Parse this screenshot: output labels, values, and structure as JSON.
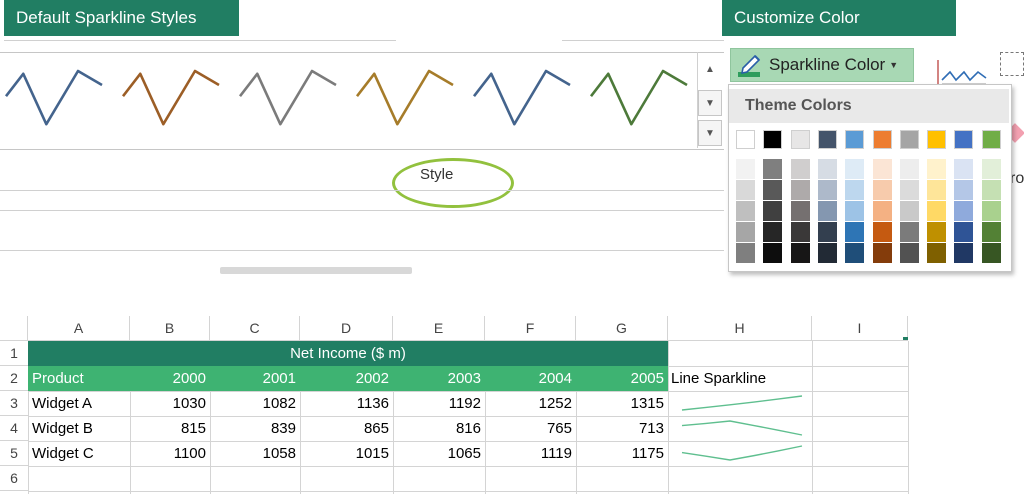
{
  "labels": {
    "default_styles": "Default Sparkline Styles",
    "customize_color": "Customize Color"
  },
  "ribbon": {
    "style_label": "Style",
    "sparkline_color_label": "Sparkline Color",
    "partial_text": "ro",
    "styles": [
      {
        "color": "#44648d"
      },
      {
        "color": "#9c5e26"
      },
      {
        "color": "#7b7b7b"
      },
      {
        "color": "#a67c2a"
      },
      {
        "color": "#44648d"
      },
      {
        "color": "#4d7a3a"
      }
    ],
    "highlight_color": "#92c13e"
  },
  "palette": {
    "title": "Theme Colors",
    "theme_colors": [
      "#ffffff",
      "#000000",
      "#e7e6e6",
      "#44546a",
      "#5b9bd5",
      "#ed7d31",
      "#a5a5a5",
      "#ffc000",
      "#4472c4",
      "#70ad47"
    ],
    "shades": [
      [
        "#f2f2f2",
        "#d9d9d9",
        "#bfbfbf",
        "#a6a6a6",
        "#7f7f7f"
      ],
      [
        "#7f7f7f",
        "#595959",
        "#404040",
        "#262626",
        "#0d0d0d"
      ],
      [
        "#d0cece",
        "#aeaaaa",
        "#757070",
        "#3a3838",
        "#171616"
      ],
      [
        "#d6dce4",
        "#adb9ca",
        "#8497b0",
        "#333f4f",
        "#222a35"
      ],
      [
        "#deebf6",
        "#bdd7ee",
        "#9dc3e6",
        "#2e75b5",
        "#1f4e79"
      ],
      [
        "#fbe5d5",
        "#f7cbac",
        "#f4b183",
        "#c55a11",
        "#843c0b"
      ],
      [
        "#ededed",
        "#dbdbdb",
        "#c9c9c9",
        "#7b7b7b",
        "#525252"
      ],
      [
        "#fff2cc",
        "#fee599",
        "#ffd965",
        "#bf9000",
        "#7f6000"
      ],
      [
        "#dae3f3",
        "#b4c7e7",
        "#8faadc",
        "#2f5496",
        "#203864"
      ],
      [
        "#e2efd9",
        "#c5e0b3",
        "#a9d18e",
        "#538135",
        "#375623"
      ]
    ]
  },
  "sheet": {
    "columns": [
      "A",
      "B",
      "C",
      "D",
      "E",
      "F",
      "G",
      "H",
      "I"
    ],
    "rows": [
      "1",
      "2",
      "3",
      "4",
      "5",
      "6"
    ],
    "title": "Net Income ($ m)",
    "header": [
      "Product",
      "2000",
      "2001",
      "2002",
      "2003",
      "2004",
      "2005"
    ],
    "sparkline_header": "Line Sparkline",
    "data": [
      {
        "product": "Widget A",
        "values": [
          "1030",
          "1082",
          "1136",
          "1192",
          "1252",
          "1315"
        ]
      },
      {
        "product": "Widget B",
        "values": [
          "815",
          "839",
          "865",
          "816",
          "765",
          "713"
        ]
      },
      {
        "product": "Widget C",
        "values": [
          "1100",
          "1058",
          "1015",
          "1065",
          "1119",
          "1175"
        ]
      }
    ],
    "title_bg": "#217e63",
    "header_bg": "#3eb372",
    "sparkline_color": "#5fbf8f"
  }
}
